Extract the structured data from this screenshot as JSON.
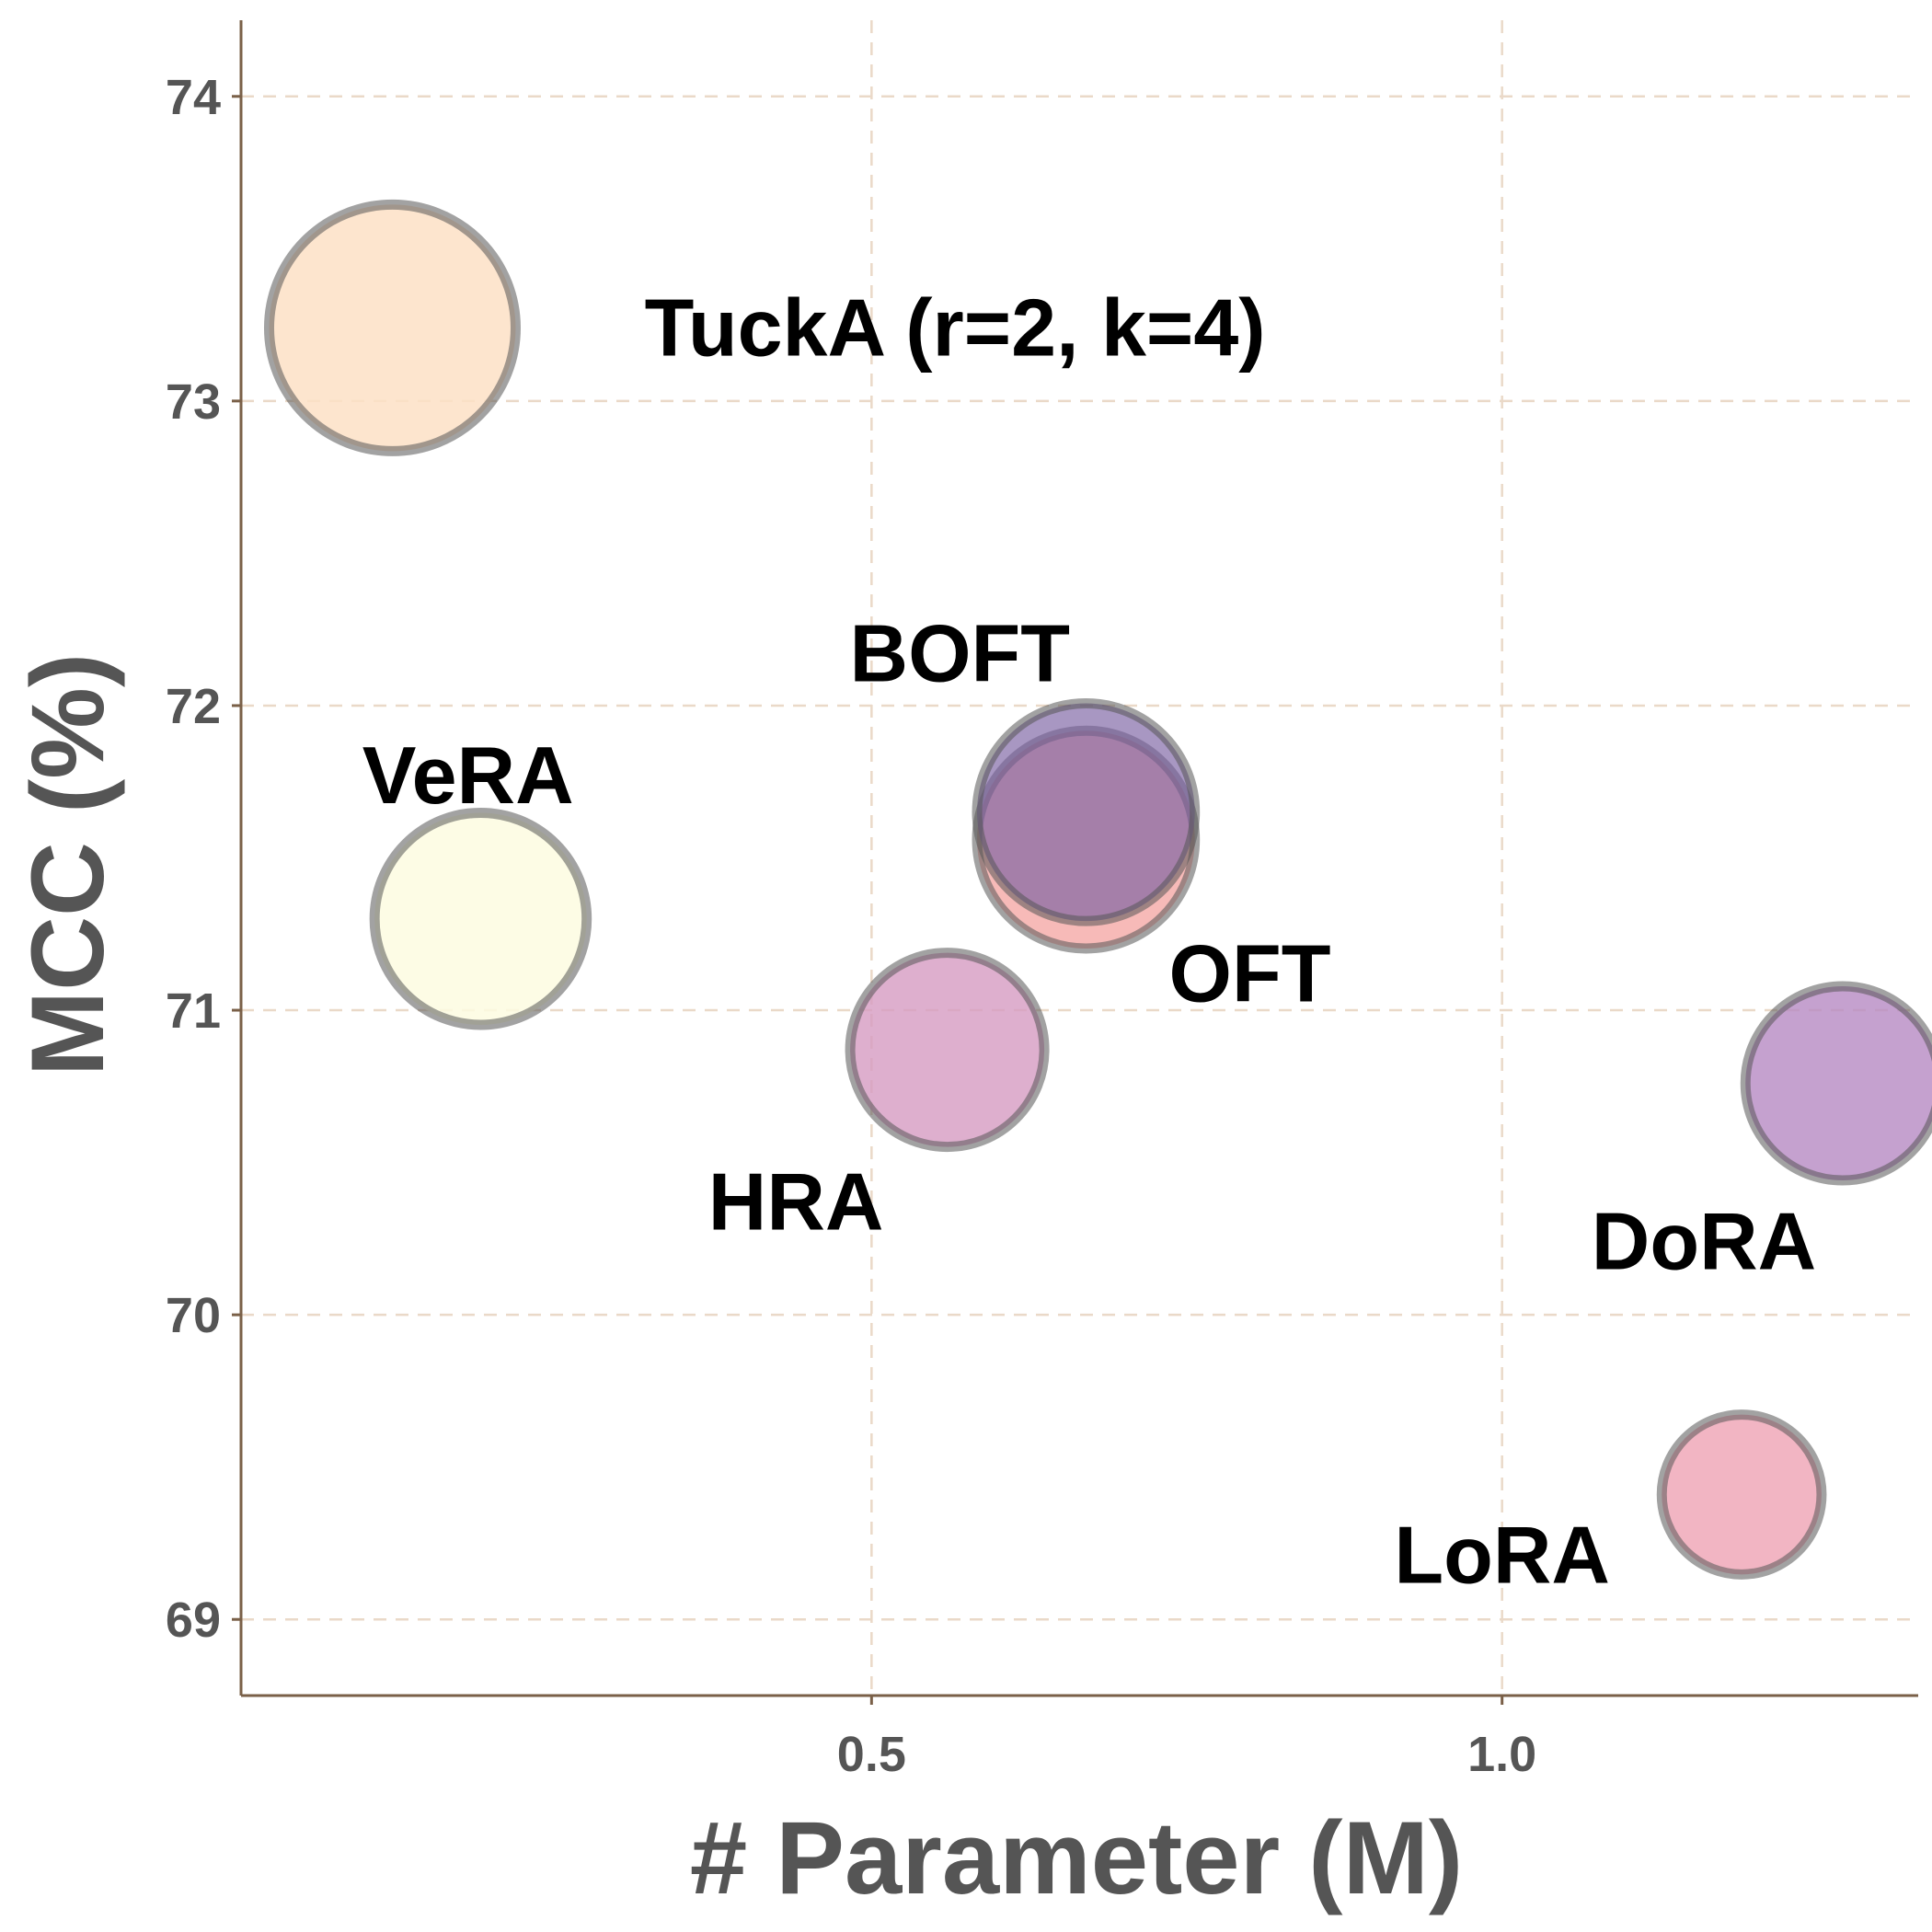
{
  "chart_data": {
    "type": "scatter",
    "title": "",
    "xlabel": "# Parameter (M)",
    "ylabel": "MCC (%)",
    "xlim": [
      0.0,
      1.33
    ],
    "ylim": [
      68.75,
      74.25
    ],
    "xticks": [
      0.5,
      1.0
    ],
    "xtick_labels": [
      "0.5",
      "1.0"
    ],
    "yticks": [
      69,
      70,
      71,
      72,
      73,
      74
    ],
    "ytick_labels": [
      "69",
      "70",
      "71",
      "72",
      "73",
      "74"
    ],
    "grid": true,
    "points": [
      {
        "name": "TuckA (r=2, k=4)",
        "label": "TuckA (r=2, k=4)",
        "x": 0.12,
        "y": 73.24,
        "size": 1.0,
        "color": "#fde0c5",
        "opacity": 0.85,
        "label_dx": 0.2,
        "label_dy": 0.0,
        "anchor": "start"
      },
      {
        "name": "VeRA",
        "label": "VeRA",
        "x": 0.19,
        "y": 71.3,
        "size": 0.74,
        "color": "#fdfce0",
        "opacity": 0.85,
        "label_dx": -0.01,
        "label_dy": 0.47,
        "anchor": "middle"
      },
      {
        "name": "HRA",
        "label": "HRA",
        "x": 0.56,
        "y": 70.87,
        "size": 0.62,
        "color": "#d69bc2",
        "opacity": 0.8,
        "label_dx": -0.12,
        "label_dy": -0.5,
        "anchor": "middle"
      },
      {
        "name": "OFT",
        "label": "OFT",
        "x": 0.67,
        "y": 71.56,
        "size": 0.78,
        "color": "#f4a3a0",
        "opacity": 0.75,
        "label_dx": 0.13,
        "label_dy": -0.44,
        "anchor": "middle"
      },
      {
        "name": "BOFT",
        "label": "BOFT",
        "x": 0.67,
        "y": 71.65,
        "size": 0.78,
        "color": "#7a5fa2",
        "opacity": 0.65,
        "label_dx": -0.1,
        "label_dy": 0.52,
        "anchor": "middle"
      },
      {
        "name": "DoRA",
        "label": "DoRA",
        "x": 1.27,
        "y": 70.76,
        "size": 0.62,
        "color": "#b68ac3",
        "opacity": 0.8,
        "label_dx": -0.11,
        "label_dy": -0.52,
        "anchor": "middle"
      },
      {
        "name": "LoRA",
        "label": "LoRA",
        "x": 1.19,
        "y": 69.41,
        "size": 0.42,
        "color": "#f0a8b8",
        "opacity": 0.85,
        "label_dx": -0.19,
        "label_dy": -0.2,
        "anchor": "middle"
      }
    ]
  }
}
